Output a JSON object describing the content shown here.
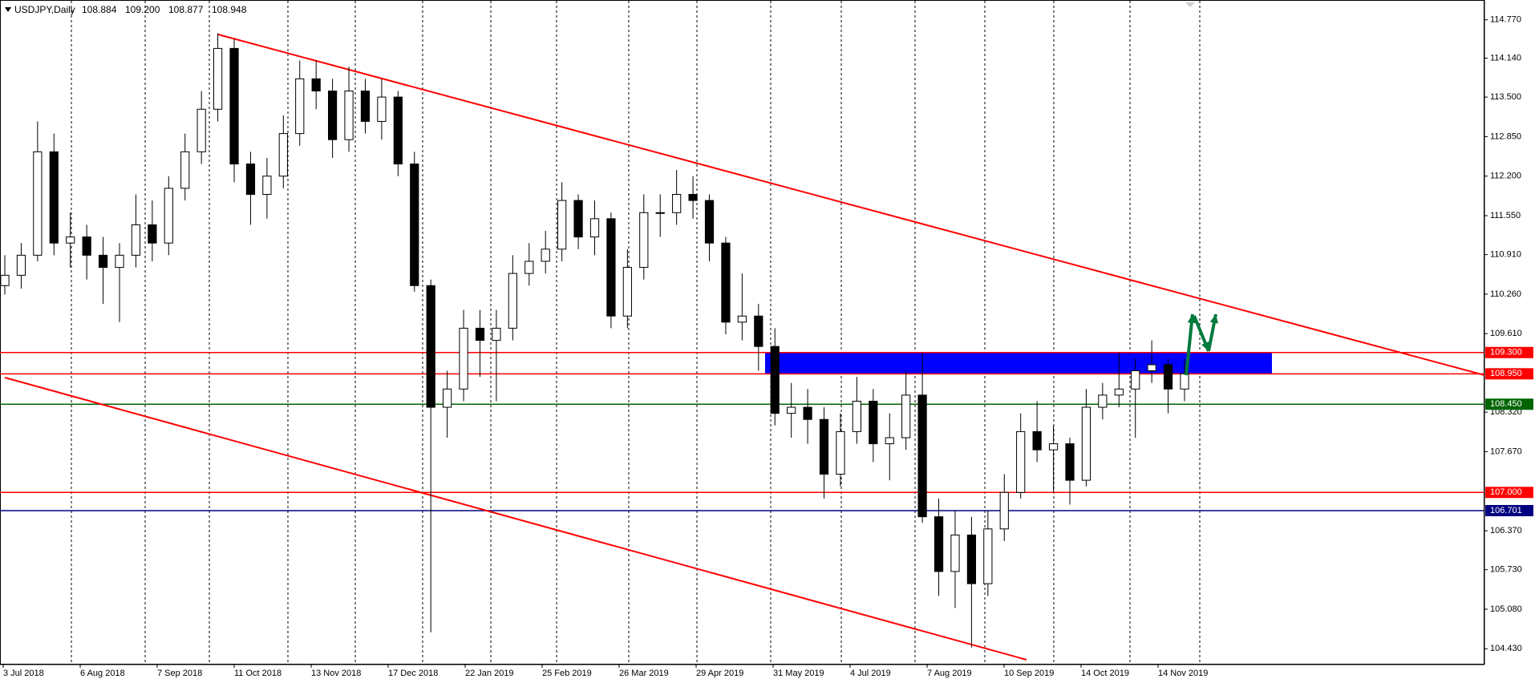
{
  "chart_data": {
    "type": "candlestick",
    "title": "USDJPY,Daily",
    "header_values": [
      "108.884",
      "109.200",
      "108.877",
      "108.948"
    ],
    "open": [
      110.4,
      110.57,
      110.9,
      112.6,
      111.1,
      111.2,
      110.9,
      110.7,
      110.9,
      111.4,
      111.1,
      112.0,
      112.6,
      113.3,
      114.3,
      112.4,
      111.9,
      112.2,
      112.9,
      113.8,
      113.6,
      112.8,
      113.6,
      113.1,
      113.5,
      112.4,
      110.4,
      108.4,
      108.7,
      109.7,
      109.5,
      109.7,
      110.6,
      110.8,
      111.0,
      111.8,
      111.2,
      111.5,
      109.9,
      110.7,
      111.6,
      111.6,
      111.9,
      111.8,
      111.1,
      109.8,
      109.9,
      109.4,
      108.3,
      108.4,
      108.2,
      107.3,
      108.0,
      108.5,
      107.8,
      107.9,
      108.6,
      106.6,
      105.7,
      106.3,
      105.5,
      106.4,
      107.0,
      108.0,
      107.7,
      107.8,
      107.2,
      108.4,
      108.6,
      108.7,
      109.0,
      109.1,
      108.7
    ],
    "high": [
      110.9,
      111.1,
      113.1,
      112.9,
      111.6,
      111.4,
      111.2,
      111.1,
      111.9,
      111.8,
      112.2,
      112.9,
      113.6,
      114.55,
      114.45,
      112.6,
      112.5,
      113.2,
      114.1,
      114.1,
      113.8,
      114.0,
      113.8,
      113.8,
      113.6,
      112.6,
      110.5,
      109.0,
      110.0,
      110.0,
      110.0,
      110.9,
      111.1,
      111.3,
      112.1,
      111.9,
      111.8,
      111.6,
      111.0,
      111.9,
      111.9,
      112.3,
      112.2,
      111.9,
      111.2,
      110.6,
      110.1,
      109.7,
      108.8,
      108.7,
      108.4,
      108.3,
      108.9,
      108.7,
      108.3,
      109.0,
      109.3,
      106.9,
      106.7,
      106.6,
      106.7,
      107.3,
      108.3,
      108.5,
      108.1,
      107.9,
      108.7,
      108.8,
      109.3,
      109.2,
      109.5,
      109.2,
      109.2
    ],
    "low": [
      110.25,
      110.35,
      110.8,
      110.9,
      110.7,
      110.5,
      110.1,
      109.8,
      110.7,
      110.8,
      110.9,
      111.8,
      112.4,
      113.1,
      112.1,
      111.4,
      111.5,
      112.0,
      112.7,
      113.3,
      112.5,
      112.6,
      112.9,
      112.8,
      112.2,
      110.3,
      104.7,
      107.9,
      108.5,
      108.9,
      108.5,
      109.5,
      110.4,
      110.6,
      110.8,
      111.0,
      110.9,
      109.7,
      109.7,
      110.5,
      111.2,
      111.4,
      111.5,
      110.8,
      109.6,
      109.5,
      109.0,
      108.1,
      107.9,
      107.8,
      106.9,
      107.1,
      107.8,
      107.5,
      107.2,
      107.7,
      106.5,
      105.3,
      105.1,
      104.45,
      105.3,
      106.2,
      106.9,
      107.5,
      107.0,
      106.8,
      107.1,
      108.2,
      108.4,
      107.9,
      108.8,
      108.3,
      108.5
    ],
    "close": [
      110.57,
      110.9,
      112.6,
      111.1,
      111.2,
      110.9,
      110.7,
      110.9,
      111.4,
      111.1,
      112.0,
      112.6,
      113.3,
      114.3,
      112.4,
      111.9,
      112.2,
      112.9,
      113.8,
      113.6,
      112.8,
      113.6,
      113.1,
      113.5,
      112.4,
      110.4,
      108.4,
      108.7,
      109.7,
      109.5,
      109.7,
      110.6,
      110.8,
      111.0,
      111.8,
      111.2,
      111.5,
      109.9,
      110.7,
      111.6,
      111.6,
      111.9,
      111.8,
      111.1,
      109.8,
      109.9,
      109.4,
      108.3,
      108.4,
      108.2,
      107.3,
      108.0,
      108.5,
      107.8,
      107.9,
      108.6,
      106.6,
      105.7,
      106.3,
      105.5,
      106.4,
      107.0,
      108.0,
      107.7,
      107.8,
      107.2,
      108.4,
      108.6,
      108.7,
      109.0,
      109.1,
      108.7,
      108.95
    ],
    "x_labels": [
      "3 Jul 2018",
      "6 Aug 2018",
      "7 Sep 2018",
      "11 Oct 2018",
      "13 Nov 2018",
      "17 Dec 2018",
      "22 Jan 2019",
      "25 Feb 2019",
      "26 Mar 2019",
      "29 Apr 2019",
      "31 May 2019",
      "4 Jul 2019",
      "7 Aug 2019",
      "10 Sep 2019",
      "14 Oct 2019",
      "14 Nov 2019"
    ],
    "ylim": [
      104.17,
      115.03
    ],
    "yticks": [
      {
        "value": 114.77,
        "label": "114.770"
      },
      {
        "value": 114.14,
        "label": "114.140"
      },
      {
        "value": 113.5,
        "label": "113.500"
      },
      {
        "value": 112.85,
        "label": "112.850"
      },
      {
        "value": 112.2,
        "label": "112.200"
      },
      {
        "value": 111.55,
        "label": "111.550"
      },
      {
        "value": 110.91,
        "label": "110.910"
      },
      {
        "value": 110.26,
        "label": "110.260"
      },
      {
        "value": 109.61,
        "label": "109.610"
      },
      {
        "value": 108.32,
        "label": "108.320"
      },
      {
        "value": 107.67,
        "label": "107.670"
      },
      {
        "value": 106.37,
        "label": "106.370"
      },
      {
        "value": 105.73,
        "label": "105.730"
      },
      {
        "value": 105.08,
        "label": "105.080"
      },
      {
        "value": 104.43,
        "label": "104.430"
      }
    ],
    "levels": [
      {
        "value": 109.3,
        "label": "109.300",
        "color": "#ff0000"
      },
      {
        "value": 108.95,
        "label": "108.950",
        "color": "#ff0000"
      },
      {
        "value": 108.45,
        "label": "108.450",
        "color": "#006400"
      },
      {
        "value": 107.0,
        "label": "107.000",
        "color": "#ff0000"
      },
      {
        "value": 106.701,
        "label": "106.701",
        "color": "#000080"
      }
    ],
    "zone_color": "#0000ff",
    "up_color": "#ffffff",
    "down_color": "#000000"
  }
}
